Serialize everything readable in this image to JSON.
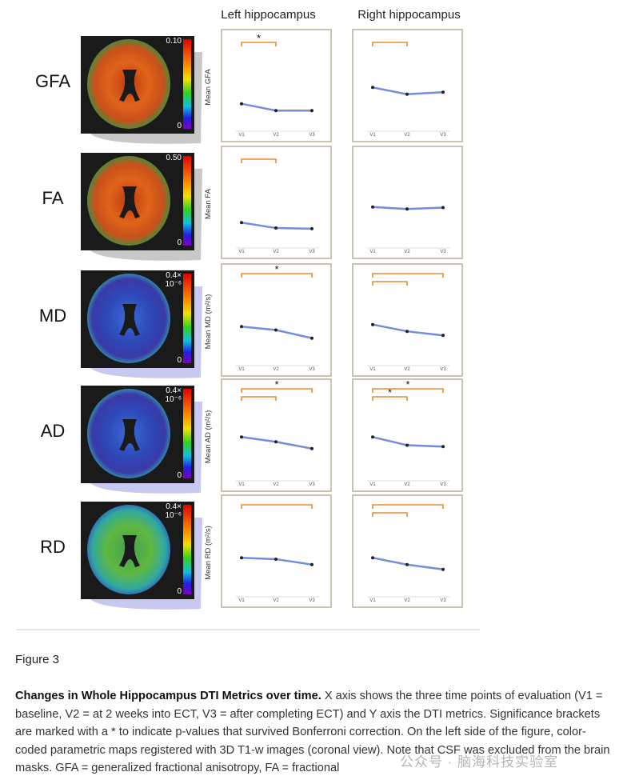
{
  "columns": [
    "Left hippocampus",
    "Right hippocampus"
  ],
  "time_points": [
    "V1",
    "V2",
    "V3"
  ],
  "rows": [
    {
      "label": "GFA",
      "map": "warm",
      "scale_max": [
        "0.10"
      ],
      "scale_min": "0",
      "y_label": "Mean GFA",
      "panels": [
        {
          "ylim": [
            0,
            1
          ],
          "mean_trend": [
            0.38,
            0.28,
            0.28
          ],
          "brackets": [
            {
              "from": "V1",
              "to": "V2",
              "star": "*"
            }
          ]
        },
        {
          "ylim": [
            0,
            1
          ],
          "mean_trend": [
            0.62,
            0.52,
            0.55
          ],
          "brackets": [
            {
              "from": "V1",
              "to": "V2"
            }
          ]
        }
      ]
    },
    {
      "label": "FA",
      "map": "warm",
      "scale_max": [
        "0.50"
      ],
      "scale_min": "0",
      "y_label": "Mean FA",
      "panels": [
        {
          "ylim": [
            0,
            1
          ],
          "mean_trend": [
            0.35,
            0.27,
            0.26
          ],
          "brackets": [
            {
              "from": "V1",
              "to": "V2"
            }
          ]
        },
        {
          "ylim": [
            0,
            1
          ],
          "mean_trend": [
            0.58,
            0.55,
            0.57
          ],
          "brackets": []
        }
      ]
    },
    {
      "label": "MD",
      "map": "cool",
      "scale_max": [
        "0.4×",
        "10⁻⁶"
      ],
      "scale_min": "0",
      "y_label": "Mean MD (m²/s)",
      "panels": [
        {
          "ylim": [
            0,
            1
          ],
          "mean_trend": [
            0.55,
            0.5,
            0.38
          ],
          "brackets": [
            {
              "from": "V1",
              "to": "V3",
              "star": "*"
            }
          ]
        },
        {
          "ylim": [
            0,
            1
          ],
          "mean_trend": [
            0.58,
            0.48,
            0.42
          ],
          "brackets": [
            {
              "from": "V1",
              "to": "V2"
            },
            {
              "from": "V1",
              "to": "V3"
            }
          ]
        }
      ]
    },
    {
      "label": "AD",
      "map": "cool",
      "scale_max": [
        "0.4×",
        "10⁻⁶"
      ],
      "scale_min": "0",
      "y_label": "Mean AD (m²/s)",
      "panels": [
        {
          "ylim": [
            0,
            1
          ],
          "mean_trend": [
            0.62,
            0.55,
            0.45
          ],
          "brackets": [
            {
              "from": "V1",
              "to": "V2"
            },
            {
              "from": "V1",
              "to": "V3",
              "star": "*"
            }
          ]
        },
        {
          "ylim": [
            0,
            1
          ],
          "mean_trend": [
            0.62,
            0.5,
            0.48
          ],
          "brackets": [
            {
              "from": "V1",
              "to": "V2",
              "star": "*"
            },
            {
              "from": "V1",
              "to": "V3",
              "star": "*"
            }
          ]
        }
      ]
    },
    {
      "label": "RD",
      "map": "green",
      "scale_max": [
        "0.4×",
        "10⁻⁶"
      ],
      "scale_min": "0",
      "y_label": "Mean RD (m²/s)",
      "panels": [
        {
          "ylim": [
            0,
            1
          ],
          "mean_trend": [
            0.55,
            0.53,
            0.45
          ],
          "brackets": [
            {
              "from": "V1",
              "to": "V3"
            }
          ]
        },
        {
          "ylim": [
            0,
            1
          ],
          "mean_trend": [
            0.55,
            0.45,
            0.38
          ],
          "brackets": [
            {
              "from": "V1",
              "to": "V2"
            },
            {
              "from": "V1",
              "to": "V3"
            }
          ]
        }
      ]
    }
  ],
  "figure_label": "Figure 3",
  "caption": {
    "lead": "Changes in Whole Hippocampus DTI Metrics over time.",
    "body": "X axis shows the three time points of evaluation (V1 = baseline, V2 = at 2 weeks into ECT, V3 = after completing ECT) and Y axis the DTI metrics. Significance brackets are marked with a * to indicate p-values that survived Bonferroni correction. On the left side of the figure, color-coded parametric maps registered with 3D T1-w images (coronal view). Note that CSF was excluded from the brain masks. GFA = generalized fractional anisotropy, FA = fractional"
  },
  "watermark": "公众号 · 脑海科技实验室"
}
